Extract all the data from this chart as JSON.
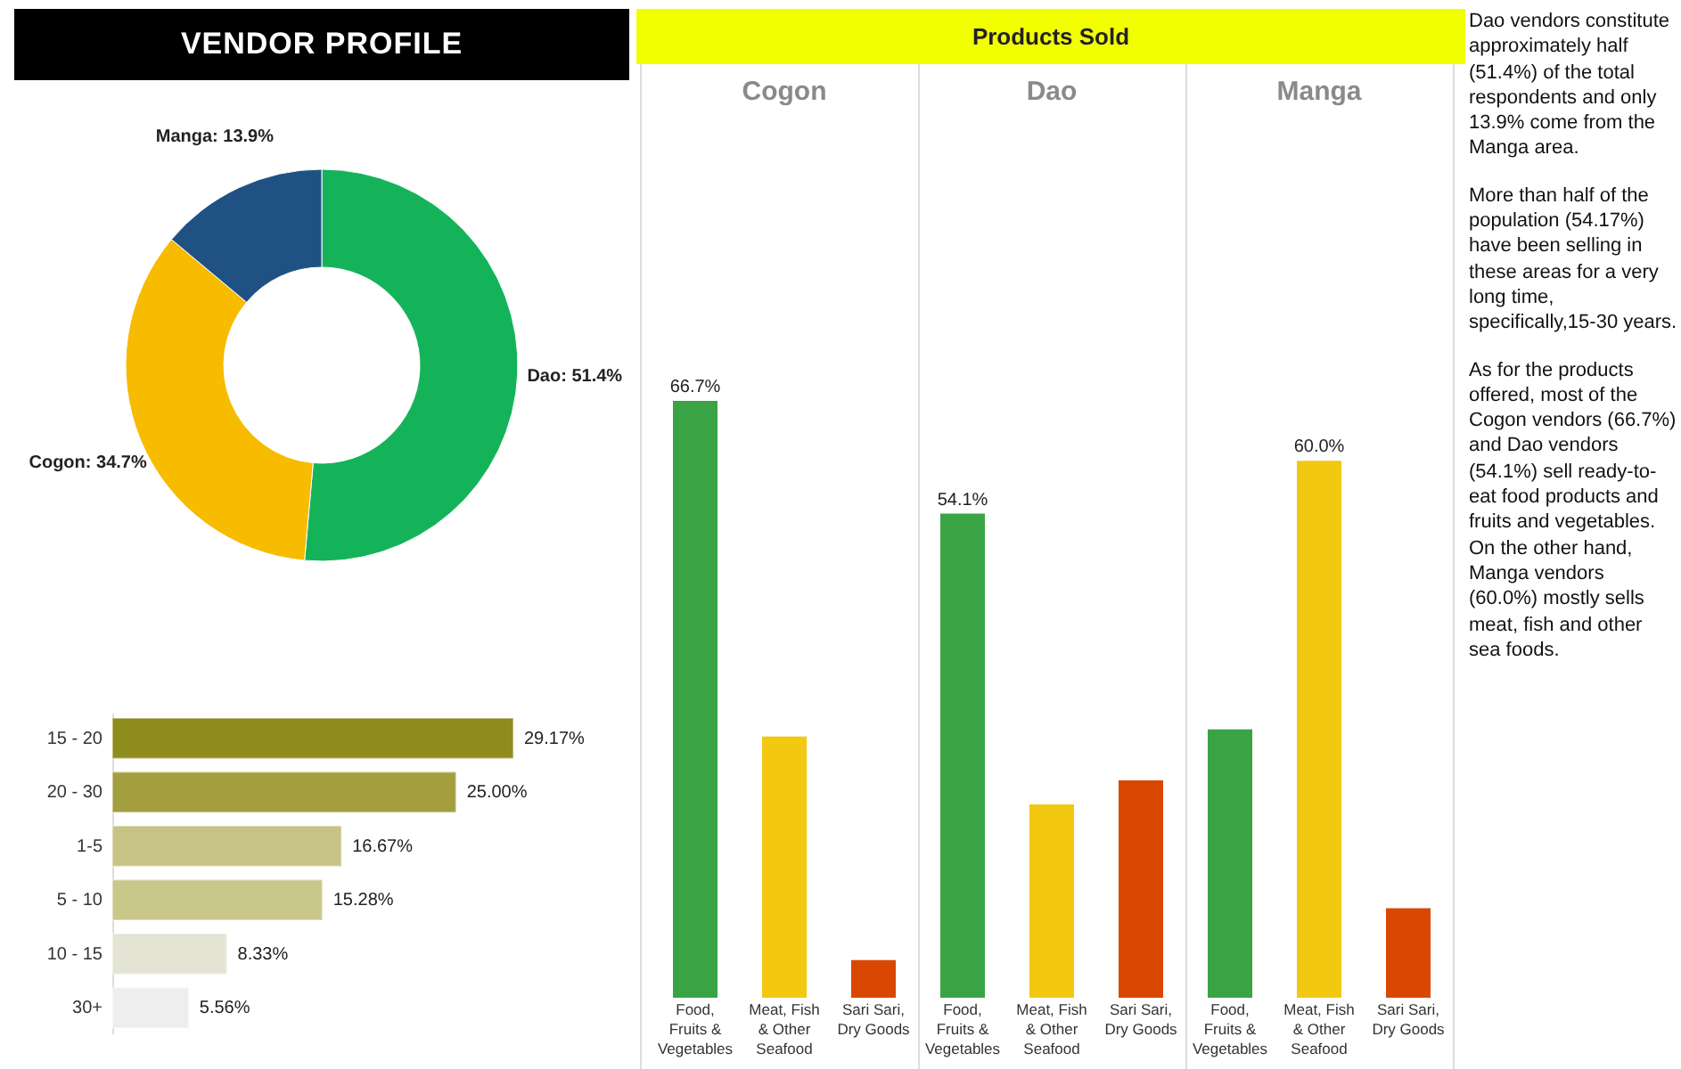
{
  "chart_data": [
    {
      "type": "donut",
      "title": "VENDOR PROFILE",
      "categories": [
        "Dao",
        "Cogon",
        "Manga"
      ],
      "values": [
        51.4,
        34.7,
        13.9
      ],
      "value_labels": [
        "51.4%",
        "34.7%",
        "13.9%"
      ],
      "colors": [
        "#14b35a",
        "#f7bb00",
        "#1f5283"
      ]
    },
    {
      "type": "bar",
      "orientation": "horizontal",
      "categories": [
        "15 - 20",
        "20 - 30",
        "1-5",
        "5 - 10",
        "10 - 15",
        "30+"
      ],
      "values": [
        29.17,
        25.0,
        16.67,
        15.28,
        8.33,
        5.56
      ],
      "value_labels": [
        "29.17%",
        "25.00%",
        "16.67%",
        "15.28%",
        "8.33%",
        "5.56%"
      ],
      "colors": [
        "#8f8c1e",
        "#a49f3e",
        "#c6c384",
        "#cac78a",
        "#e3e4d3",
        "#eeeeee"
      ]
    },
    {
      "type": "bar",
      "title": "Products Sold",
      "annotations": [
        "Cogon",
        "Dao",
        "Manga"
      ],
      "categories": [
        "Food, Fruits & Vegetables",
        "Meat, Fish & Other Seafood",
        "Sari Sari, Dry Goods",
        "Food, Fruits & Vegetables",
        "Meat, Fish & Other Seafood",
        "Sari Sari, Dry Goods",
        "Food, Fruits & Vegetables",
        "Meat, Fish & Other Seafood",
        "Sari Sari, Dry Goods"
      ],
      "values": [
        66.7,
        29.2,
        4.2,
        54.1,
        21.6,
        24.3,
        30.0,
        60.0,
        10.0
      ],
      "value_labels": [
        "66.7%",
        null,
        null,
        "54.1%",
        null,
        null,
        null,
        "60.0%",
        null
      ],
      "colors": [
        "#3aa346",
        "#f2c811",
        "#d94800",
        "#3aa346",
        "#f2c811",
        "#d94800",
        "#3aa346",
        "#f2c811",
        "#d94800"
      ]
    },
    {
      "type": "other",
      "annotations": [
        "Dao vendors constitute approximately half (51.4%) of the total respondents and only 13.9% come from the Manga area.",
        "More than half of the population (54.17%) have been selling in these areas for a very long time, specifically,15-30 years.",
        "As for the products offered, most of the Cogon vendors (66.7%) and Dao vendors (54.1%) sell ready-to-eat food products and fruits and vegetables. On the other hand, Manga vendors (60.0%) mostly sells meat, fish and other sea foods."
      ]
    }
  ]
}
